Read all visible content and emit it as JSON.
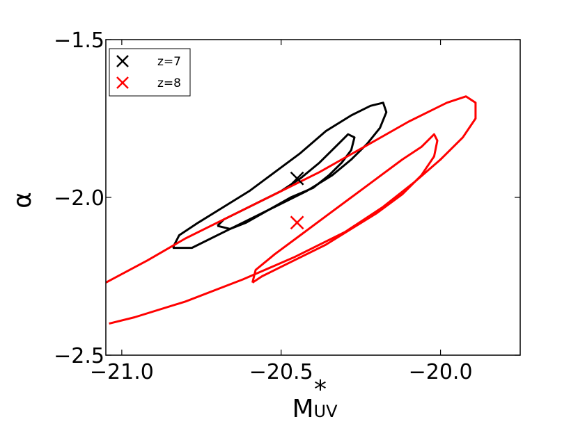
{
  "chart_data": {
    "type": "contour",
    "xlabel_main": "M",
    "xlabel_sub": "UV",
    "xlabel_sup": "*",
    "ylabel": "α",
    "xlim": [
      -21.05,
      -19.75
    ],
    "ylim": [
      -2.5,
      -1.5
    ],
    "xticks": [
      -21.0,
      -20.5,
      -20.0
    ],
    "xtick_labels": [
      "−21.0",
      "−20.5",
      "−20.0"
    ],
    "yticks": [
      -2.5,
      -2.0,
      -1.5
    ],
    "ytick_labels": [
      "−2.5",
      "−2.0",
      "−1.5"
    ],
    "grid": false,
    "legend_position": "top-left",
    "series": [
      {
        "name": "z=7",
        "color": "#000000",
        "best_fit": {
          "x": -20.45,
          "y": -1.94
        },
        "contours": [
          [
            [
              -20.7,
              -2.09
            ],
            [
              -20.68,
              -2.07
            ],
            [
              -20.62,
              -2.04
            ],
            [
              -20.56,
              -2.01
            ],
            [
              -20.5,
              -1.98
            ],
            [
              -20.44,
              -1.94
            ],
            [
              -20.38,
              -1.89
            ],
            [
              -20.34,
              -1.85
            ],
            [
              -20.31,
              -1.82
            ],
            [
              -20.29,
              -1.8
            ],
            [
              -20.27,
              -1.81
            ],
            [
              -20.28,
              -1.85
            ],
            [
              -20.31,
              -1.89
            ],
            [
              -20.35,
              -1.93
            ],
            [
              -20.4,
              -1.97
            ],
            [
              -20.47,
              -2.0
            ],
            [
              -20.54,
              -2.04
            ],
            [
              -20.61,
              -2.08
            ],
            [
              -20.66,
              -2.1
            ],
            [
              -20.7,
              -2.09
            ]
          ],
          [
            [
              -20.84,
              -2.16
            ],
            [
              -20.82,
              -2.12
            ],
            [
              -20.76,
              -2.08
            ],
            [
              -20.68,
              -2.03
            ],
            [
              -20.6,
              -1.98
            ],
            [
              -20.52,
              -1.92
            ],
            [
              -20.44,
              -1.86
            ],
            [
              -20.36,
              -1.79
            ],
            [
              -20.28,
              -1.74
            ],
            [
              -20.22,
              -1.71
            ],
            [
              -20.18,
              -1.7
            ],
            [
              -20.17,
              -1.73
            ],
            [
              -20.19,
              -1.78
            ],
            [
              -20.23,
              -1.83
            ],
            [
              -20.28,
              -1.88
            ],
            [
              -20.34,
              -1.93
            ],
            [
              -20.42,
              -1.98
            ],
            [
              -20.52,
              -2.03
            ],
            [
              -20.62,
              -2.08
            ],
            [
              -20.72,
              -2.13
            ],
            [
              -20.78,
              -2.16
            ],
            [
              -20.84,
              -2.16
            ]
          ]
        ]
      },
      {
        "name": "z=8",
        "color": "#ff0000",
        "best_fit": {
          "x": -20.45,
          "y": -2.08
        },
        "contours": [
          [
            [
              -20.59,
              -2.27
            ],
            [
              -20.58,
              -2.23
            ],
            [
              -20.52,
              -2.18
            ],
            [
              -20.44,
              -2.12
            ],
            [
              -20.36,
              -2.06
            ],
            [
              -20.28,
              -2.0
            ],
            [
              -20.2,
              -1.94
            ],
            [
              -20.12,
              -1.88
            ],
            [
              -20.06,
              -1.84
            ],
            [
              -20.02,
              -1.8
            ],
            [
              -20.01,
              -1.82
            ],
            [
              -20.02,
              -1.87
            ],
            [
              -20.06,
              -1.93
            ],
            [
              -20.12,
              -1.99
            ],
            [
              -20.2,
              -2.05
            ],
            [
              -20.28,
              -2.1
            ],
            [
              -20.36,
              -2.15
            ],
            [
              -20.46,
              -2.2
            ],
            [
              -20.56,
              -2.25
            ],
            [
              -20.59,
              -2.27
            ]
          ],
          [
            [
              -21.05,
              -2.27
            ],
            [
              -20.92,
              -2.2
            ],
            [
              -20.8,
              -2.13
            ],
            [
              -20.66,
              -2.06
            ],
            [
              -20.52,
              -1.99
            ],
            [
              -20.38,
              -1.92
            ],
            [
              -20.24,
              -1.84
            ],
            [
              -20.1,
              -1.76
            ],
            [
              -19.98,
              -1.7
            ],
            [
              -19.92,
              -1.68
            ],
            [
              -19.89,
              -1.7
            ],
            [
              -19.89,
              -1.75
            ],
            [
              -19.93,
              -1.81
            ],
            [
              -20.0,
              -1.88
            ],
            [
              -20.08,
              -1.95
            ],
            [
              -20.18,
              -2.03
            ],
            [
              -20.3,
              -2.11
            ],
            [
              -20.46,
              -2.19
            ],
            [
              -20.62,
              -2.26
            ],
            [
              -20.8,
              -2.33
            ],
            [
              -20.96,
              -2.38
            ],
            [
              -21.04,
              -2.4
            ]
          ]
        ]
      }
    ]
  }
}
